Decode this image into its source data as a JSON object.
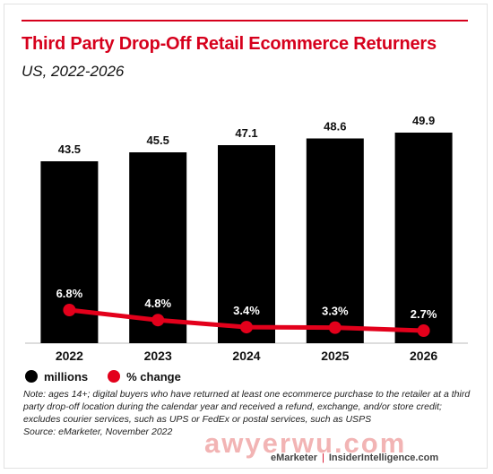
{
  "header": {
    "title": "Third Party Drop-Off Retail Ecommerce Returners",
    "subtitle": "US, 2022-2026"
  },
  "colors": {
    "accent": "#d6001c",
    "bar": "#000000",
    "line": "#e3001b"
  },
  "chart_data": {
    "type": "bar",
    "categories": [
      "2022",
      "2023",
      "2024",
      "2025",
      "2026"
    ],
    "series": [
      {
        "name": "millions",
        "type": "bar",
        "values": [
          43.5,
          45.5,
          47.1,
          48.6,
          49.9
        ],
        "labels": [
          "43.5",
          "45.5",
          "47.1",
          "48.6",
          "49.9"
        ]
      },
      {
        "name": "% change",
        "type": "line",
        "values": [
          6.8,
          4.8,
          3.4,
          3.3,
          2.7
        ],
        "labels": [
          "6.8%",
          "4.8%",
          "3.4%",
          "3.3%",
          "2.7%"
        ]
      }
    ],
    "legend_position": "bottom-left",
    "grid": false
  },
  "legend": {
    "millions_label": "millions",
    "change_label": "% change"
  },
  "note": {
    "text": "Note: ages 14+; digital buyers who have returned at least one ecommerce purchase to the retailer at a third party drop-off location during the calendar year and received a refund, exchange, and/or store credit; excludes courier services, such as UPS or FedEx or postal services, such as USPS",
    "source": "Source: eMarketer, November 2022"
  },
  "watermark": "awyerwu.com",
  "footer": {
    "brand": "eMarketer",
    "separator": "|",
    "site": "InsiderIntelligence.com"
  }
}
